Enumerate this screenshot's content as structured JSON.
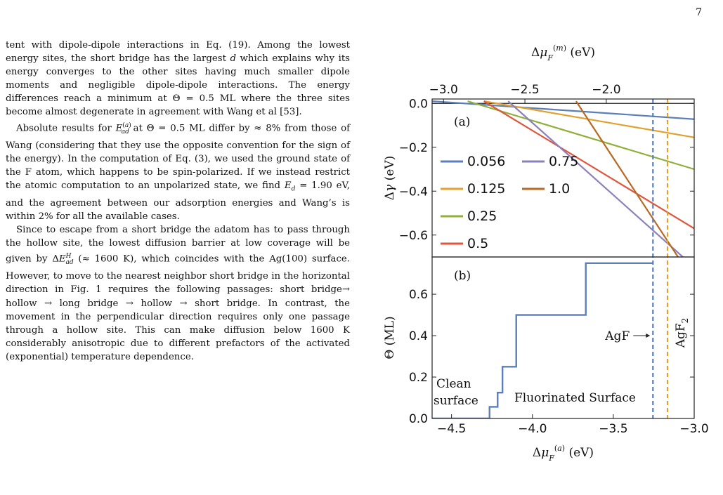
{
  "page_number": "7",
  "text": {
    "paragraphs": [
      "tent with dipole-dipole interactions in Eq. (19). Among the lowest energy sites, the short bridge has the largest d which explains why its energy converges to the other sites having much smaller dipole moments and negligible dipole-dipole interactions. The energy differences reach a minimum at Θ = 0.5 ML where the three sites become almost degenerate in agreement with Wang et al [53].",
      "Absolute results for E(a)ad at Θ = 0.5 ML differ by ≈ 8% from those of Wang (considering that they use the opposite convention for the sign of the energy). In the computation of Eq. (3), we used the ground state of the F atom, which happens to be spin-polarized. If we instead restrict the atomic computation to an unpolarized state, we find Ed = 1.90 eV, and the agreement between our adsorption energies and Wang's is within 2% for all the available cases.",
      "Since to escape from a short bridge the adatom has to pass through the hollow site, the lowest diffusion barrier at low coverage will be given by ΔEHad (≈ 1600 K), which coincides with the Ag(100) surface. However, to move to the nearest neighbor short bridge in the horizontal direction in Fig. 1 requires the following passages: short bridge→ hollow → long bridge → hollow → short bridge. In contrast, the movement in the perpendicular direction requires only one passage through a hollow site. This can make diffusion below 1600 K considerably anisotropic due to different prefactors of the activated (exponential) temperature dependence."
    ]
  },
  "chart_data": [
    {
      "type": "line",
      "panel_label": "(a)",
      "xlabel_top": "Δμ_F^(m) (eV)",
      "xticks_top": [
        "−3.0",
        "−2.5",
        "−2.0"
      ],
      "xticks_top_values": [
        -3.0,
        -2.5,
        -2.0
      ],
      "xlim_top": [
        -3.07,
        -1.46
      ],
      "ylabel": "Δγ (eV)",
      "yticks": [
        "0.0",
        "−0.2",
        "−0.4",
        "−0.6"
      ],
      "ytick_values": [
        0.0,
        -0.2,
        -0.4,
        -0.6
      ],
      "ylim": [
        -0.7,
        0.02
      ],
      "xlim": [
        -4.62,
        -3.0
      ],
      "series": [
        {
          "name": "0.056",
          "color": "#5b7fb8",
          "x": [
            -4.62,
            -3.0
          ],
          "y": [
            0.01,
            -0.072
          ]
        },
        {
          "name": "0.125",
          "color": "#e2a02d",
          "x": [
            -4.3,
            -3.0
          ],
          "y": [
            0.01,
            -0.155
          ]
        },
        {
          "name": "0.25",
          "color": "#8fb13b",
          "x": [
            -4.4,
            -3.0
          ],
          "y": [
            0.01,
            -0.3
          ]
        },
        {
          "name": "0.5",
          "color": "#e0563c",
          "x": [
            -4.3,
            -3.0
          ],
          "y": [
            0.01,
            -0.57
          ]
        },
        {
          "name": "0.75",
          "color": "#8c80bb",
          "x": [
            -4.15,
            -3.07
          ],
          "y": [
            0.01,
            -0.7
          ]
        },
        {
          "name": "1.0",
          "color": "#b86a23",
          "x": [
            -3.73,
            -3.1
          ],
          "y": [
            0.01,
            -0.7
          ]
        }
      ],
      "vlines": [
        {
          "x": -3.255,
          "color": "#5b7fb8"
        },
        {
          "x": -3.165,
          "color": "#e2a02d"
        }
      ]
    },
    {
      "type": "line",
      "panel_label": "(b)",
      "xlabel": "Δμ_F^(a) (eV)",
      "xticks": [
        "−4.5",
        "−4.0",
        "−3.5",
        "−3.0"
      ],
      "xtick_values": [
        -4.5,
        -4.0,
        -3.5,
        -3.0
      ],
      "xlim": [
        -4.62,
        -3.0
      ],
      "ylabel": "Θ (ML)",
      "yticks": [
        "0.0",
        "0.2",
        "0.4",
        "0.6"
      ],
      "ytick_values": [
        0.0,
        0.2,
        0.4,
        0.6
      ],
      "ylim": [
        0.0,
        0.78
      ],
      "series": [
        {
          "name": "",
          "color": "#5b7fb8",
          "x": [
            -4.62,
            -4.265,
            -4.265,
            -4.215,
            -4.215,
            -4.185,
            -4.185,
            -4.1,
            -4.1,
            -3.67,
            -3.67,
            -3.255
          ],
          "y": [
            0.0,
            0.0,
            0.056,
            0.056,
            0.125,
            0.125,
            0.25,
            0.25,
            0.5,
            0.5,
            0.75,
            0.75
          ]
        }
      ],
      "vlines": [
        {
          "x": -3.255,
          "color": "#5b7fb8"
        },
        {
          "x": -3.165,
          "color": "#e2a02d"
        }
      ],
      "annotations": {
        "clean": [
          "Clean",
          "surface"
        ],
        "fluorinated": "Fluorinated Surface",
        "agf": "AgF",
        "agf2": "AgF2"
      }
    }
  ]
}
